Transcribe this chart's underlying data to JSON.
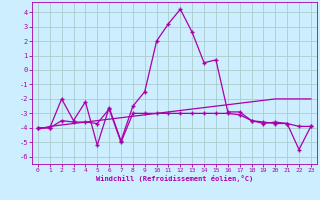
{
  "xlabel": "Windchill (Refroidissement éolien,°C)",
  "background_color": "#cceeff",
  "grid_color": "#aacccc",
  "line_color": "#aa00aa",
  "x": [
    0,
    1,
    2,
    3,
    4,
    5,
    6,
    7,
    8,
    9,
    10,
    11,
    12,
    13,
    14,
    15,
    16,
    17,
    18,
    19,
    20,
    21,
    22,
    23
  ],
  "series1": [
    -4.0,
    -4.0,
    -2.0,
    -3.5,
    -2.2,
    -5.2,
    -2.6,
    -4.9,
    -2.5,
    -1.5,
    2.0,
    3.2,
    4.2,
    2.6,
    0.5,
    0.7,
    -2.9,
    -2.9,
    -3.5,
    -3.7,
    -3.6,
    -3.7,
    -5.5,
    -3.9
  ],
  "series2": [
    -4.0,
    -4.0,
    -3.5,
    -3.6,
    -3.6,
    -3.7,
    -2.7,
    -5.0,
    -3.0,
    -3.0,
    -3.0,
    -3.0,
    -3.0,
    -3.0,
    -3.0,
    -3.0,
    -3.0,
    -3.1,
    -3.5,
    -3.6,
    -3.7,
    -3.7,
    -3.9,
    -3.9
  ],
  "series3": [
    -4.1,
    -3.9,
    -3.8,
    -3.7,
    -3.6,
    -3.5,
    -3.4,
    -3.3,
    -3.2,
    -3.1,
    -3.0,
    -2.9,
    -2.8,
    -2.7,
    -2.6,
    -2.5,
    -2.4,
    -2.3,
    -2.2,
    -2.1,
    -2.0,
    -2.0,
    -2.0,
    -2.0
  ],
  "ylim": [
    -6.5,
    4.7
  ],
  "xlim": [
    -0.5,
    23.5
  ],
  "yticks": [
    -6,
    -5,
    -4,
    -3,
    -2,
    -1,
    0,
    1,
    2,
    3,
    4
  ],
  "xticks": [
    0,
    1,
    2,
    3,
    4,
    5,
    6,
    7,
    8,
    9,
    10,
    11,
    12,
    13,
    14,
    15,
    16,
    17,
    18,
    19,
    20,
    21,
    22,
    23
  ]
}
